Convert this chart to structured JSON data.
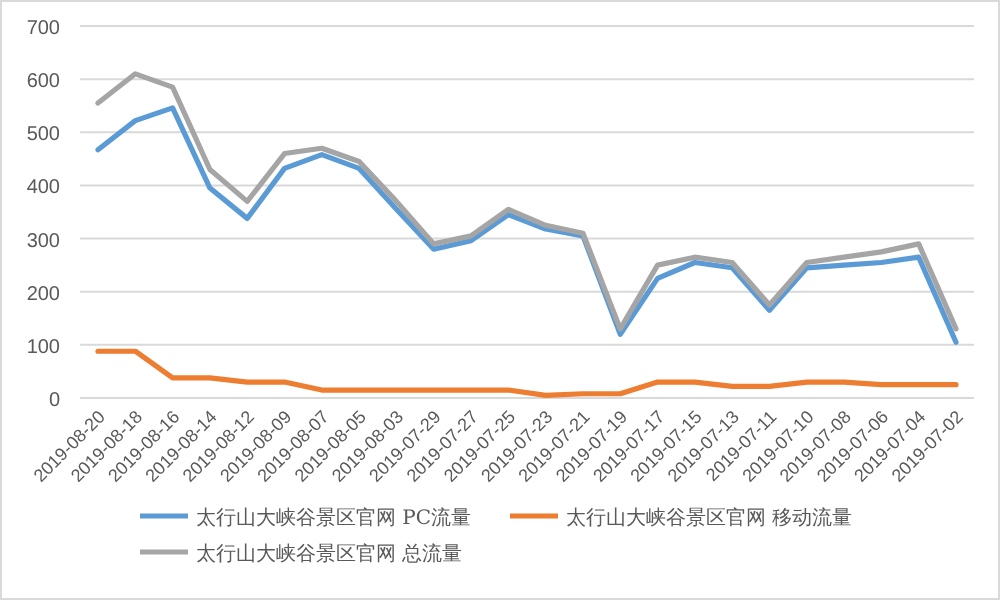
{
  "chart_data": {
    "type": "line",
    "categories": [
      "2019-08-20",
      "2019-08-18",
      "2019-08-16",
      "2019-08-14",
      "2019-08-12",
      "2019-08-09",
      "2019-08-07",
      "2019-08-05",
      "2019-08-03",
      "2019-07-29",
      "2019-07-27",
      "2019-07-25",
      "2019-07-23",
      "2019-07-21",
      "2019-07-19",
      "2019-07-17",
      "2019-07-15",
      "2019-07-13",
      "2019-07-11",
      "2019-07-10",
      "2019-07-08",
      "2019-07-06",
      "2019-07-04",
      "2019-07-02"
    ],
    "series": [
      {
        "name": "太行山大峡谷景区官网 PC流量",
        "color": "#5b9bd5",
        "values": [
          467,
          522,
          546,
          395,
          338,
          432,
          458,
          432,
          355,
          280,
          296,
          345,
          318,
          305,
          120,
          225,
          255,
          245,
          165,
          245,
          250,
          255,
          265,
          105
        ]
      },
      {
        "name": "太行山大峡谷景区官网 移动流量",
        "color": "#ed7d31",
        "values": [
          88,
          88,
          38,
          38,
          30,
          30,
          15,
          15,
          15,
          15,
          15,
          15,
          5,
          8,
          8,
          30,
          30,
          22,
          22,
          30,
          30,
          25,
          25,
          25
        ]
      },
      {
        "name": "太行山大峡谷景区官网 总流量",
        "color": "#a5a5a5",
        "values": [
          555,
          610,
          585,
          430,
          370,
          460,
          470,
          445,
          370,
          290,
          305,
          355,
          325,
          310,
          130,
          250,
          265,
          255,
          175,
          255,
          265,
          275,
          290,
          130
        ]
      }
    ],
    "ylim": [
      0,
      700
    ],
    "yticks": [
      0,
      100,
      200,
      300,
      400,
      500,
      600,
      700
    ],
    "grid": "y",
    "legend": "bottom",
    "marker": "none",
    "line_style": "solid"
  }
}
